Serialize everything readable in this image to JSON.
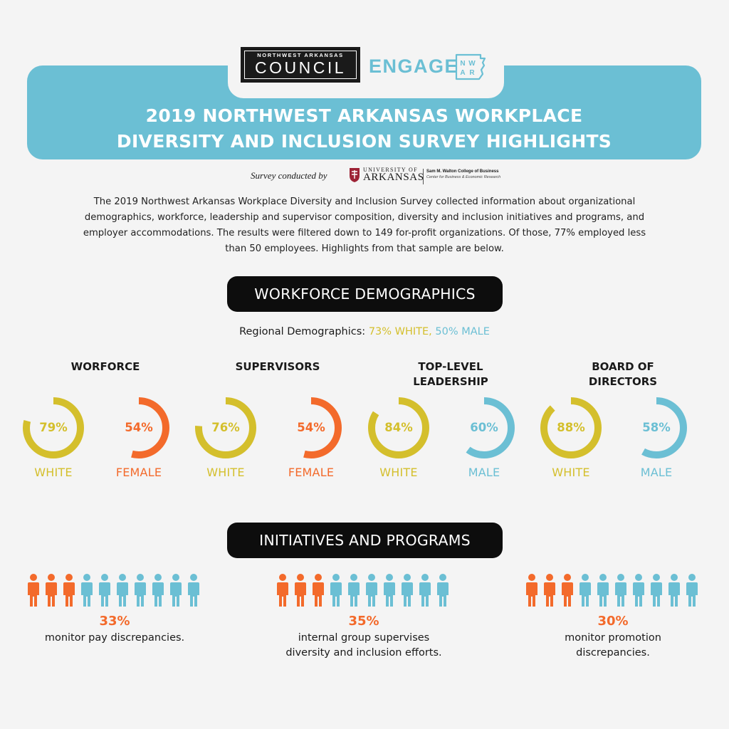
{
  "header": {
    "council_logo": {
      "small": "NORTHWEST ARKANSAS",
      "big": "COUNCIL"
    },
    "engage_logo": {
      "word": "ENGAGE",
      "mark": [
        "N",
        "W",
        "A",
        "R"
      ]
    },
    "title_line1": "2019 NORTHWEST ARKANSAS WORKPLACE",
    "title_line2": "DIVERSITY AND INCLUSION SURVEY HIGHLIGHTS"
  },
  "credit": {
    "label": "Survey conducted by",
    "university_small": "UNIVERSITY OF",
    "university_big": "ARKANSAS",
    "school": "Sam M. Walton College of Business",
    "center": "Center for Business & Economic Research"
  },
  "intro": {
    "lines": [
      "The 2019 Northwest Arkansas Workplace Diversity and Inclusion Survey collected information about organizational",
      "demographics, workforce, leadership and supervisor composition, diversity and  inclusion initiatives and programs, and",
      "employer accommodations. The results were filtered down to 149 for-profit organizations. Of those, 77% employed less",
      "than 50 employees. Highlights from that sample are below."
    ]
  },
  "workforce_section": {
    "heading": "WORKFORCE DEMOGRAPHICS",
    "regional_label": "Regional Demographics:",
    "regional_white": "73% WHITE,",
    "regional_male": "50% MALE",
    "groups": [
      {
        "title_lines": [
          "WORFORCE"
        ],
        "rings": [
          {
            "pct_text": "79%",
            "value": 0.79,
            "label": "WHITE",
            "color": "#d4bf2c"
          },
          {
            "pct_text": "54%",
            "value": 0.54,
            "label": "FEMALE",
            "color": "#f36a2b"
          }
        ]
      },
      {
        "title_lines": [
          "SUPERVISORS"
        ],
        "rings": [
          {
            "pct_text": "76%",
            "value": 0.76,
            "label": "WHITE",
            "color": "#d4bf2c"
          },
          {
            "pct_text": "54%",
            "value": 0.54,
            "label": "FEMALE",
            "color": "#f36a2b"
          }
        ]
      },
      {
        "title_lines": [
          "TOP-LEVEL",
          "LEADERSHIP"
        ],
        "rings": [
          {
            "pct_text": "84%",
            "value": 0.84,
            "label": "WHITE",
            "color": "#d4bf2c"
          },
          {
            "pct_text": "60%",
            "value": 0.6,
            "label": "MALE",
            "color": "#6bbfd4"
          }
        ]
      },
      {
        "title_lines": [
          "BOARD OF",
          "DIRECTORS"
        ],
        "rings": [
          {
            "pct_text": "88%",
            "value": 0.88,
            "label": "WHITE",
            "color": "#d4bf2c"
          },
          {
            "pct_text": "58%",
            "value": 0.58,
            "label": "MALE",
            "color": "#6bbfd4"
          }
        ]
      }
    ]
  },
  "initiatives_section": {
    "heading": "INITIATIVES AND PROGRAMS",
    "icon": "person-icon",
    "highlight_color": "#f36a2b",
    "base_color": "#6bbfd4",
    "stats": [
      {
        "pct": "33%",
        "highlighted_people": 3,
        "total_people": 10,
        "desc_lines": [
          "monitor pay discrepancies."
        ]
      },
      {
        "pct": "35%",
        "highlighted_people": 3,
        "total_people": 10,
        "desc_lines": [
          "internal group supervises",
          "diversity and inclusion efforts."
        ]
      },
      {
        "pct": "30%",
        "highlighted_people": 3,
        "total_people": 10,
        "desc_lines": [
          "monitor promotion",
          "discrepancies."
        ]
      }
    ]
  }
}
